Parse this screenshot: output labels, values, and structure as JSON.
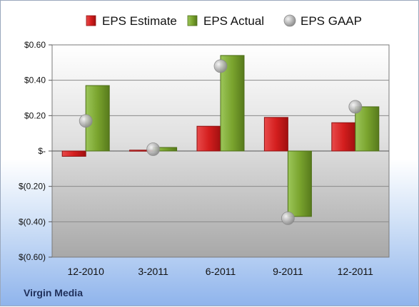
{
  "chart_data": {
    "type": "bar",
    "title": "",
    "xlabel": "",
    "ylabel": "",
    "categories": [
      "12-2010",
      "3-2011",
      "6-2011",
      "9-2011",
      "12-2011"
    ],
    "series": [
      {
        "name": "EPS Estimate",
        "kind": "bar",
        "color": "#cc1f1f",
        "values": [
          -0.03,
          0.005,
          0.14,
          0.19,
          0.16
        ]
      },
      {
        "name": "EPS Actual",
        "kind": "bar",
        "color": "#7aa42e",
        "values": [
          0.37,
          0.02,
          0.54,
          -0.37,
          0.25
        ]
      },
      {
        "name": "EPS GAAP",
        "kind": "marker",
        "color": "#a9a9a9",
        "values": [
          0.17,
          0.01,
          0.48,
          -0.38,
          0.25
        ]
      }
    ],
    "ylim": [
      -0.6,
      0.6
    ],
    "yticks": [
      0.6,
      0.4,
      0.2,
      0,
      -0.2,
      -0.4,
      -0.6
    ],
    "ytick_labels": [
      "$0.60",
      "$0.40",
      "$0.20",
      "$-",
      "$(0.20)",
      "$(0.40)",
      "$(0.60)"
    ],
    "grid": true,
    "legend_position": "top"
  },
  "company": "Virgin Media"
}
